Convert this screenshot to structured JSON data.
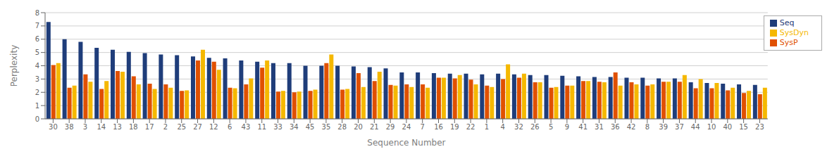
{
  "chart_data": {
    "type": "bar",
    "categories": [
      "30",
      "38",
      "3",
      "14",
      "13",
      "18",
      "17",
      "2",
      "25",
      "27",
      "12",
      "6",
      "43",
      "11",
      "33",
      "34",
      "45",
      "35",
      "28",
      "20",
      "21",
      "29",
      "24",
      "7",
      "16",
      "19",
      "22",
      "1",
      "4",
      "32",
      "26",
      "5",
      "9",
      "41",
      "31",
      "36",
      "42",
      "8",
      "39",
      "37",
      "44",
      "10",
      "40",
      "15",
      "23"
    ],
    "series": [
      {
        "name": "Seq",
        "color": "#1f3d7a",
        "values": [
          7.3,
          6.0,
          5.8,
          5.35,
          5.2,
          5.05,
          4.95,
          4.85,
          4.8,
          4.7,
          4.6,
          4.55,
          4.4,
          4.3,
          4.2,
          4.2,
          4.0,
          4.0,
          4.0,
          3.95,
          3.9,
          3.8,
          3.5,
          3.5,
          3.45,
          3.4,
          3.4,
          3.35,
          3.4,
          3.35,
          3.3,
          3.3,
          3.25,
          3.2,
          3.15,
          3.15,
          3.1,
          3.1,
          3.05,
          3.05,
          2.75,
          2.7,
          2.65,
          2.6,
          2.55
        ]
      },
      {
        "name": "SysP",
        "color": "#e05000",
        "values": [
          4.05,
          2.35,
          3.35,
          2.25,
          3.6,
          3.2,
          2.65,
          2.6,
          2.1,
          4.4,
          4.3,
          2.35,
          2.6,
          3.85,
          2.05,
          2.0,
          2.1,
          4.2,
          2.2,
          3.45,
          2.85,
          2.55,
          2.6,
          2.6,
          3.1,
          3.05,
          2.95,
          2.5,
          3.0,
          3.1,
          2.75,
          2.35,
          2.5,
          2.85,
          2.8,
          3.5,
          2.75,
          2.5,
          2.8,
          2.8,
          2.3,
          2.3,
          2.15,
          1.95,
          1.85
        ]
      },
      {
        "name": "SysDyn",
        "color": "#f5b800",
        "values": [
          4.2,
          2.5,
          2.8,
          2.85,
          3.55,
          2.6,
          2.25,
          2.35,
          2.15,
          5.2,
          3.7,
          2.3,
          3.05,
          4.4,
          2.1,
          2.05,
          2.2,
          4.85,
          2.25,
          2.4,
          3.55,
          2.5,
          2.4,
          2.35,
          3.1,
          3.3,
          2.6,
          2.4,
          4.1,
          3.4,
          2.75,
          2.4,
          2.5,
          2.85,
          2.75,
          2.5,
          2.6,
          2.6,
          2.8,
          3.3,
          3.0,
          2.7,
          2.35,
          2.1,
          2.35
        ]
      }
    ],
    "xlabel": "Sequence Number",
    "ylabel": "Perplexity",
    "ylim": [
      0,
      8
    ],
    "yticks": [
      0,
      1,
      2,
      3,
      4,
      5,
      6,
      7,
      8
    ],
    "grid": true,
    "legend": "upper right"
  }
}
